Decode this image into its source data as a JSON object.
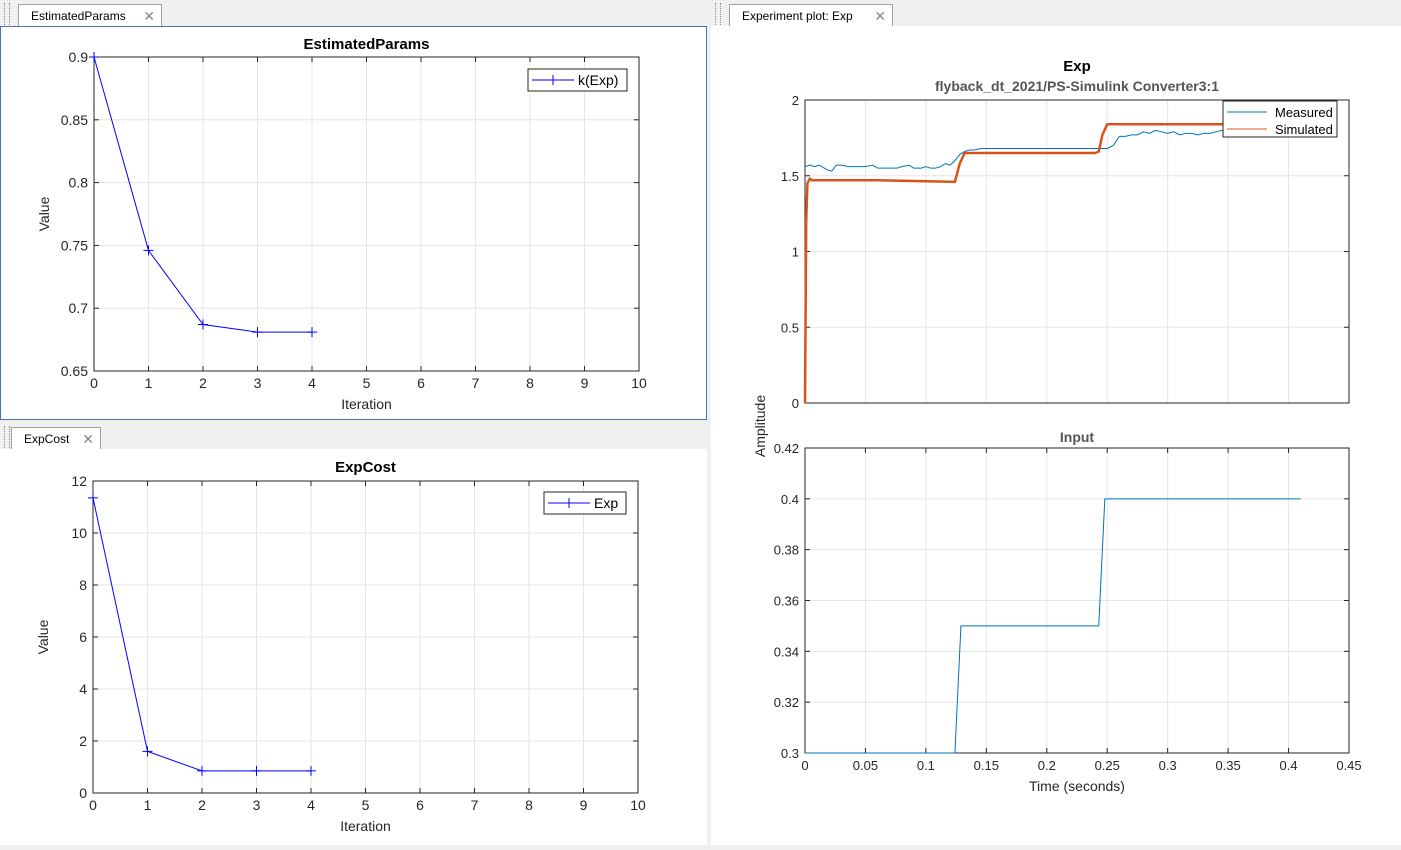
{
  "tabs": {
    "params": "EstimatedParams",
    "cost": "ExpCost",
    "experiment": "Experiment plot: Exp"
  },
  "colors": {
    "line_blue": "#0000ff",
    "measured": "#0072bd",
    "simulated": "#d95319",
    "grid": "#e5e5e5"
  },
  "chart_data": [
    {
      "id": "params",
      "type": "line",
      "title": "EstimatedParams",
      "xlabel": "Iteration",
      "ylabel": "Value",
      "xlim": [
        0,
        10
      ],
      "ylim": [
        0.65,
        0.9
      ],
      "xticks": [
        "0",
        "1",
        "2",
        "3",
        "4",
        "5",
        "6",
        "7",
        "8",
        "9",
        "10"
      ],
      "yticks": [
        "0.65",
        "0.7",
        "0.75",
        "0.8",
        "0.85",
        "0.9"
      ],
      "grid": true,
      "legend_position": "top-right",
      "series": [
        {
          "name": "k(Exp)",
          "marker": "+",
          "x": [
            0,
            1,
            2,
            3,
            4
          ],
          "y": [
            0.9,
            0.746,
            0.687,
            0.681,
            0.681
          ]
        }
      ]
    },
    {
      "id": "cost",
      "type": "line",
      "title": "ExpCost",
      "xlabel": "Iteration",
      "ylabel": "Value",
      "xlim": [
        0,
        10
      ],
      "ylim": [
        0,
        12
      ],
      "xticks": [
        "0",
        "1",
        "2",
        "3",
        "4",
        "5",
        "6",
        "7",
        "8",
        "9",
        "10"
      ],
      "yticks": [
        "0",
        "2",
        "4",
        "6",
        "8",
        "10",
        "12"
      ],
      "grid": true,
      "legend_position": "top-right",
      "series": [
        {
          "name": "Exp",
          "marker": "+",
          "x": [
            0,
            1,
            2,
            3,
            4
          ],
          "y": [
            11.35,
            1.6,
            0.85,
            0.85,
            0.85
          ]
        }
      ]
    },
    {
      "id": "exp_top",
      "type": "line",
      "title": "Exp",
      "subtitle": "flyback_dt_2021/PS-Simulink Converter3:1",
      "ylabel": "Amplitude",
      "xlim": [
        0,
        0.45
      ],
      "ylim": [
        0,
        2
      ],
      "yticks": [
        "0",
        "0.5",
        "1",
        "1.5",
        "2"
      ],
      "grid": true,
      "legend_position": "top-right",
      "series": [
        {
          "name": "Measured",
          "x": [
            0,
            0.004,
            0.008,
            0.012,
            0.018,
            0.022,
            0.026,
            0.03,
            0.036,
            0.04,
            0.046,
            0.05,
            0.056,
            0.06,
            0.066,
            0.07,
            0.076,
            0.08,
            0.086,
            0.09,
            0.096,
            0.1,
            0.104,
            0.108,
            0.112,
            0.116,
            0.12,
            0.124,
            0.128,
            0.132,
            0.136,
            0.14,
            0.146,
            0.15,
            0.16,
            0.17,
            0.18,
            0.19,
            0.2,
            0.21,
            0.22,
            0.23,
            0.24,
            0.245,
            0.25,
            0.255,
            0.26,
            0.265,
            0.27,
            0.275,
            0.28,
            0.285,
            0.29,
            0.295,
            0.3,
            0.305,
            0.31,
            0.315,
            0.32,
            0.325,
            0.33,
            0.335,
            0.34,
            0.345,
            0.35,
            0.355,
            0.36,
            0.37,
            0.38,
            0.39,
            0.4,
            0.41
          ],
          "y": [
            1.56,
            1.57,
            1.56,
            1.57,
            1.54,
            1.53,
            1.57,
            1.57,
            1.56,
            1.56,
            1.56,
            1.56,
            1.57,
            1.55,
            1.55,
            1.55,
            1.55,
            1.56,
            1.57,
            1.55,
            1.55,
            1.56,
            1.55,
            1.55,
            1.56,
            1.58,
            1.57,
            1.6,
            1.64,
            1.66,
            1.67,
            1.67,
            1.68,
            1.68,
            1.68,
            1.68,
            1.68,
            1.68,
            1.68,
            1.68,
            1.68,
            1.68,
            1.68,
            1.68,
            1.68,
            1.7,
            1.76,
            1.76,
            1.77,
            1.77,
            1.79,
            1.78,
            1.8,
            1.79,
            1.78,
            1.79,
            1.77,
            1.78,
            1.78,
            1.77,
            1.78,
            1.78,
            1.79,
            1.8,
            1.78,
            1.79,
            1.79,
            1.8,
            1.8,
            1.79,
            1.8,
            1.8
          ]
        },
        {
          "name": "Simulated",
          "x": [
            0,
            0.001,
            0.002,
            0.004,
            0.006,
            0.01,
            0.06,
            0.12,
            0.124,
            0.128,
            0.132,
            0.2,
            0.24,
            0.243,
            0.246,
            0.25,
            0.3,
            0.35,
            0.41
          ],
          "y": [
            0,
            1.2,
            1.45,
            1.48,
            1.47,
            1.47,
            1.47,
            1.46,
            1.46,
            1.58,
            1.65,
            1.65,
            1.65,
            1.66,
            1.77,
            1.84,
            1.84,
            1.84,
            1.84
          ]
        }
      ]
    },
    {
      "id": "exp_bottom",
      "type": "line",
      "title": "Input",
      "xlabel": "Time (seconds)",
      "xlim": [
        0,
        0.45
      ],
      "ylim": [
        0.3,
        0.42
      ],
      "xticks": [
        "0",
        "0.05",
        "0.1",
        "0.15",
        "0.2",
        "0.25",
        "0.3",
        "0.35",
        "0.4",
        "0.45"
      ],
      "yticks": [
        "0.3",
        "0.32",
        "0.34",
        "0.36",
        "0.38",
        "0.4",
        "0.42"
      ],
      "grid": true,
      "series": [
        {
          "name": "",
          "x": [
            0,
            0.124,
            0.129,
            0.243,
            0.248,
            0.41
          ],
          "y": [
            0.3,
            0.3,
            0.35,
            0.35,
            0.4,
            0.4
          ]
        }
      ]
    }
  ]
}
